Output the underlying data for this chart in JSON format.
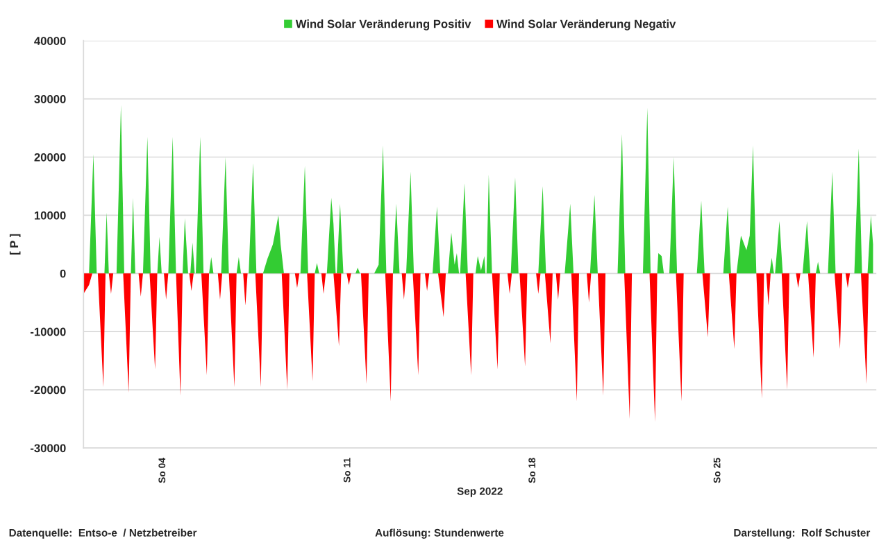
{
  "chart_data": {
    "type": "area",
    "ylabel": "[ P ]",
    "xlabel": "Sep 2022",
    "xlim": [
      "2022-09-01T00:00",
      "2022-10-01T00:00"
    ],
    "xticks": [
      {
        "value": "2022-09-04",
        "label": "So 04"
      },
      {
        "value": "2022-09-11",
        "label": "So 11"
      },
      {
        "value": "2022-09-18",
        "label": "So 18"
      },
      {
        "value": "2022-09-25",
        "label": "So 25"
      }
    ],
    "ylim": [
      -30000,
      40000
    ],
    "yticks": [
      -30000,
      -20000,
      -10000,
      0,
      10000,
      20000,
      30000,
      40000
    ],
    "grid": "y",
    "legend": "top",
    "annotations": [
      "Datenquelle:  Entso-e  / Netzbetreiber",
      "Auflösung: Stundenwerte",
      "Darstellung:  Rolf Schuster"
    ],
    "series": [
      {
        "name": "Wind Solar Veränderung Positiv",
        "color": "#33cc33",
        "x": [
          "2022-09-01T05:00",
          "2022-09-01T09:00",
          "2022-09-01T12:00",
          "2022-09-01T19:00",
          "2022-09-01T21:00",
          "2022-09-01T23:00",
          "2022-09-02T06:00",
          "2022-09-02T10:00",
          "2022-09-02T13:00",
          "2022-09-02T19:00",
          "2022-09-02T21:00",
          "2022-09-02T23:00",
          "2022-09-03T06:00",
          "2022-09-03T10:00",
          "2022-09-03T13:00",
          "2022-09-03T19:00",
          "2022-09-03T21:00",
          "2022-09-03T23:00",
          "2022-09-04T05:00",
          "2022-09-04T09:00",
          "2022-09-04T12:00",
          "2022-09-04T18:00",
          "2022-09-04T20:00",
          "2022-09-04T23:00",
          "2022-09-05T01:00",
          "2022-09-05T03:00",
          "2022-09-05T05:00",
          "2022-09-05T06:00",
          "2022-09-05T10:00",
          "2022-09-05T13:00",
          "2022-09-05T18:00",
          "2022-09-05T20:00",
          "2022-09-05T22:00",
          "2022-09-06T05:00",
          "2022-09-06T09:00",
          "2022-09-06T12:00",
          "2022-09-06T19:00",
          "2022-09-06T21:00",
          "2022-09-06T23:00",
          "2022-09-07T06:00",
          "2022-09-07T10:00",
          "2022-09-07T13:00",
          "2022-09-07T19:00",
          "2022-09-07T23:00",
          "2022-09-08T04:00",
          "2022-09-08T09:00",
          "2022-09-08T11:00",
          "2022-09-08T14:00",
          "2022-09-09T05:00",
          "2022-09-09T09:00",
          "2022-09-09T12:00",
          "2022-09-09T18:00",
          "2022-09-09T20:00",
          "2022-09-09T22:00",
          "2022-09-10T05:00",
          "2022-09-10T09:00",
          "2022-09-10T11:00",
          "2022-09-10T13:00",
          "2022-09-10T14:00",
          "2022-09-10T17:00",
          "2022-09-10T20:00",
          "2022-09-11T07:00",
          "2022-09-11T09:00",
          "2022-09-11T11:00",
          "2022-09-12T00:00",
          "2022-09-12T04:00",
          "2022-09-12T08:00",
          "2022-09-12T11:00",
          "2022-09-12T17:00",
          "2022-09-12T20:00",
          "2022-09-12T23:00",
          "2022-09-13T05:00",
          "2022-09-13T09:00",
          "2022-09-13T12:00",
          "2022-09-14T05:00",
          "2022-09-14T09:00",
          "2022-09-14T12:00",
          "2022-09-14T19:00",
          "2022-09-14T22:00",
          "2022-09-15T01:00",
          "2022-09-15T03:00",
          "2022-09-15T05:00",
          "2022-09-15T06:00",
          "2022-09-15T10:00",
          "2022-09-15T13:00",
          "2022-09-15T20:00",
          "2022-09-15T22:00",
          "2022-09-16T01:00",
          "2022-09-16T04:00",
          "2022-09-16T05:00",
          "2022-09-16T06:00",
          "2022-09-16T08:00",
          "2022-09-16T11:00",
          "2022-09-17T04:00",
          "2022-09-17T08:00",
          "2022-09-17T11:00",
          "2022-09-18T05:00",
          "2022-09-18T09:00",
          "2022-09-18T12:00",
          "2022-09-19T05:00",
          "2022-09-19T10:00",
          "2022-09-19T13:00",
          "2022-09-20T04:00",
          "2022-09-20T08:00",
          "2022-09-20T11:00",
          "2022-09-21T05:00",
          "2022-09-21T09:00",
          "2022-09-21T12:00",
          "2022-09-22T04:00",
          "2022-09-22T08:00",
          "2022-09-22T11:00",
          "2022-09-22T17:00",
          "2022-09-22T18:00",
          "2022-09-22T21:00",
          "2022-09-22T23:00",
          "2022-09-23T04:00",
          "2022-09-23T08:00",
          "2022-09-23T11:00",
          "2022-09-24T05:00",
          "2022-09-24T09:00",
          "2022-09-24T12:00",
          "2022-09-25T05:00",
          "2022-09-25T09:00",
          "2022-09-25T12:00",
          "2022-09-25T17:00",
          "2022-09-25T21:00",
          "2022-09-26T02:00",
          "2022-09-26T05:00",
          "2022-09-26T08:00",
          "2022-09-26T11:00",
          "2022-09-26T23:00",
          "2022-09-27T01:00",
          "2022-09-27T03:00",
          "2022-09-27T04:00",
          "2022-09-27T08:00",
          "2022-09-27T11:00",
          "2022-09-28T05:00",
          "2022-09-28T09:00",
          "2022-09-28T12:00",
          "2022-09-28T17:00",
          "2022-09-28T19:00",
          "2022-09-28T21:00",
          "2022-09-29T04:00",
          "2022-09-29T08:00",
          "2022-09-29T11:00",
          "2022-09-30T04:00",
          "2022-09-30T08:00",
          "2022-09-30T11:00",
          "2022-09-30T16:00",
          "2022-09-30T19:00",
          "2022-09-30T21:00"
        ],
        "values": [
          0,
          20500,
          0,
          0,
          10500,
          0,
          0,
          29000,
          0,
          0,
          13000,
          0,
          0,
          23500,
          0,
          0,
          6300,
          0,
          0,
          23500,
          0,
          0,
          9500,
          0,
          0,
          5300,
          0,
          0,
          23500,
          0,
          0,
          2800,
          0,
          0,
          20000,
          0,
          0,
          2800,
          0,
          0,
          19000,
          0,
          0,
          2500,
          5000,
          10000,
          5000,
          0,
          0,
          18500,
          0,
          0,
          1800,
          0,
          0,
          13000,
          8500,
          0,
          0,
          12000,
          0,
          0,
          1000,
          0,
          0,
          1500,
          22000,
          0,
          0,
          12000,
          0,
          0,
          17500,
          0,
          0,
          11500,
          0,
          0,
          7000,
          1500,
          3500,
          0,
          0,
          15500,
          0,
          0,
          3000,
          500,
          3000,
          0,
          0,
          17000,
          0,
          0,
          16500,
          0,
          0,
          15000,
          0,
          0,
          12000,
          0,
          0,
          13500,
          0,
          0,
          24000,
          0,
          0,
          28500,
          0,
          0,
          3500,
          3000,
          0,
          0,
          20000,
          0,
          0,
          12500,
          0,
          0,
          11500,
          0,
          0,
          6500,
          4000,
          6500,
          22000,
          0,
          0,
          2700,
          0,
          0,
          9000,
          0,
          0,
          9000,
          0,
          0,
          2000,
          0,
          0,
          17500,
          0,
          0,
          21500,
          0,
          0,
          10000,
          5000
        ]
      },
      {
        "name": "Wind Solar Veränderung Negativ",
        "color": "#ff0000",
        "x": [
          "2022-09-01T00:00",
          "2022-09-01T05:00",
          "2022-09-01T08:00",
          "2022-09-01T13:00",
          "2022-09-01T18:00",
          "2022-09-01T20:00",
          "2022-09-01T23:00",
          "2022-09-02T01:00",
          "2022-09-02T03:00",
          "2022-09-02T12:00",
          "2022-09-02T17:00",
          "2022-09-02T19:00",
          "2022-09-03T02:00",
          "2022-09-03T04:00",
          "2022-09-03T06:00",
          "2022-09-03T12:00",
          "2022-09-03T15:00",
          "2022-09-03T17:00",
          "2022-09-03T19:00",
          "2022-09-04T01:00",
          "2022-09-04T03:00",
          "2022-09-04T05:00",
          "2022-09-04T12:00",
          "2022-09-04T16:00",
          "2022-09-04T18:00",
          "2022-09-05T00:00",
          "2022-09-05T02:00",
          "2022-09-05T04:00",
          "2022-09-05T11:00",
          "2022-09-05T16:00",
          "2022-09-05T18:00",
          "2022-09-06T02:00",
          "2022-09-06T04:00",
          "2022-09-06T06:00",
          "2022-09-06T12:00",
          "2022-09-06T17:00",
          "2022-09-06T19:00",
          "2022-09-07T01:00",
          "2022-09-07T03:00",
          "2022-09-07T05:00",
          "2022-09-07T12:00",
          "2022-09-07T17:00",
          "2022-09-07T19:00",
          "2022-09-08T12:00",
          "2022-09-08T17:00",
          "2022-09-08T19:00",
          "2022-09-09T00:00",
          "2022-09-09T02:00",
          "2022-09-09T04:00",
          "2022-09-09T11:00",
          "2022-09-09T16:00",
          "2022-09-09T18:00",
          "2022-09-10T00:00",
          "2022-09-10T02:00",
          "2022-09-10T04:00",
          "2022-09-10T11:00",
          "2022-09-10T16:00",
          "2022-09-10T18:00",
          "2022-09-10T23:00",
          "2022-09-11T01:00",
          "2022-09-11T03:00",
          "2022-09-11T12:00",
          "2022-09-11T17:00",
          "2022-09-11T19:00",
          "2022-09-12T10:00",
          "2022-09-12T15:00",
          "2022-09-12T17:00",
          "2022-09-13T01:00",
          "2022-09-13T03:00",
          "2022-09-13T05:00",
          "2022-09-13T11:00",
          "2022-09-13T16:00",
          "2022-09-13T18:00",
          "2022-09-13T22:00",
          "2022-09-14T00:00",
          "2022-09-14T02:00",
          "2022-09-14T10:00",
          "2022-09-14T15:00",
          "2022-09-14T17:00",
          "2022-09-15T11:00",
          "2022-09-15T16:00",
          "2022-09-15T18:00",
          "2022-09-16T11:00",
          "2022-09-16T16:00",
          "2022-09-16T18:00",
          "2022-09-17T01:00",
          "2022-09-17T03:00",
          "2022-09-17T05:00",
          "2022-09-17T12:00",
          "2022-09-17T17:00",
          "2022-09-17T19:00",
          "2022-09-18T03:00",
          "2022-09-18T05:00",
          "2022-09-18T07:00",
          "2022-09-18T11:00",
          "2022-09-18T16:00",
          "2022-09-18T18:00",
          "2022-09-18T21:00",
          "2022-09-18T23:00",
          "2022-09-19T01:00",
          "2022-09-19T11:00",
          "2022-09-19T16:00",
          "2022-09-19T18:00",
          "2022-09-20T01:00",
          "2022-09-20T03:00",
          "2022-09-20T05:00",
          "2022-09-20T11:00",
          "2022-09-20T16:00",
          "2022-09-20T18:00",
          "2022-09-21T11:00",
          "2022-09-21T16:00",
          "2022-09-21T18:00",
          "2022-09-22T10:00",
          "2022-09-22T15:00",
          "2022-09-22T17:00",
          "2022-09-23T10:00",
          "2022-09-23T15:00",
          "2022-09-23T17:00",
          "2022-09-24T10:00",
          "2022-09-24T15:00",
          "2022-09-24T17:00",
          "2022-09-25T10:00",
          "2022-09-25T15:00",
          "2022-09-25T17:00",
          "2022-09-26T11:00",
          "2022-09-26T16:00",
          "2022-09-26T18:00",
          "2022-09-26T20:00",
          "2022-09-26T22:00",
          "2022-09-27T00:00",
          "2022-09-27T10:00",
          "2022-09-27T15:00",
          "2022-09-27T17:00",
          "2022-09-27T23:00",
          "2022-09-28T01:00",
          "2022-09-28T03:00",
          "2022-09-28T10:00",
          "2022-09-28T15:00",
          "2022-09-28T17:00",
          "2022-09-29T10:00",
          "2022-09-29T15:00",
          "2022-09-29T17:00",
          "2022-09-29T20:00",
          "2022-09-29T22:00",
          "2022-09-30T00:00",
          "2022-09-30T10:00",
          "2022-09-30T15:00",
          "2022-09-30T17:00"
        ],
        "values": [
          -3500,
          -2000,
          0,
          0,
          -19500,
          0,
          0,
          -3500,
          0,
          0,
          -20500,
          0,
          0,
          -4000,
          0,
          0,
          -10000,
          -16500,
          0,
          0,
          -4500,
          0,
          0,
          -21000,
          0,
          0,
          -3000,
          0,
          0,
          -17500,
          0,
          0,
          -4500,
          0,
          0,
          -19500,
          0,
          0,
          -5500,
          0,
          0,
          -19500,
          0,
          0,
          -20000,
          0,
          0,
          -2500,
          0,
          0,
          -18500,
          0,
          0,
          -3500,
          0,
          0,
          -12500,
          0,
          0,
          -2000,
          0,
          0,
          -19000,
          0,
          0,
          -22000,
          0,
          0,
          -4500,
          0,
          0,
          -17500,
          0,
          0,
          -3000,
          0,
          0,
          -7500,
          0,
          0,
          -17500,
          0,
          0,
          -16500,
          0,
          0,
          -3500,
          0,
          0,
          -16000,
          0,
          0,
          -3500,
          0,
          0,
          -12000,
          0,
          0,
          -4500,
          0,
          0,
          -22000,
          0,
          0,
          -5000,
          0,
          0,
          -21000,
          0,
          0,
          -25000,
          0,
          0,
          -25500,
          0,
          0,
          -22000,
          0,
          0,
          -11000,
          0,
          0,
          -13000,
          0,
          0,
          -21500,
          0,
          0,
          -5500,
          0,
          0,
          -20000,
          0,
          0,
          -2500,
          0,
          0,
          -14500,
          0,
          0,
          -13000,
          0,
          0,
          -2500,
          0,
          0,
          -19000,
          0
        ]
      }
    ]
  }
}
